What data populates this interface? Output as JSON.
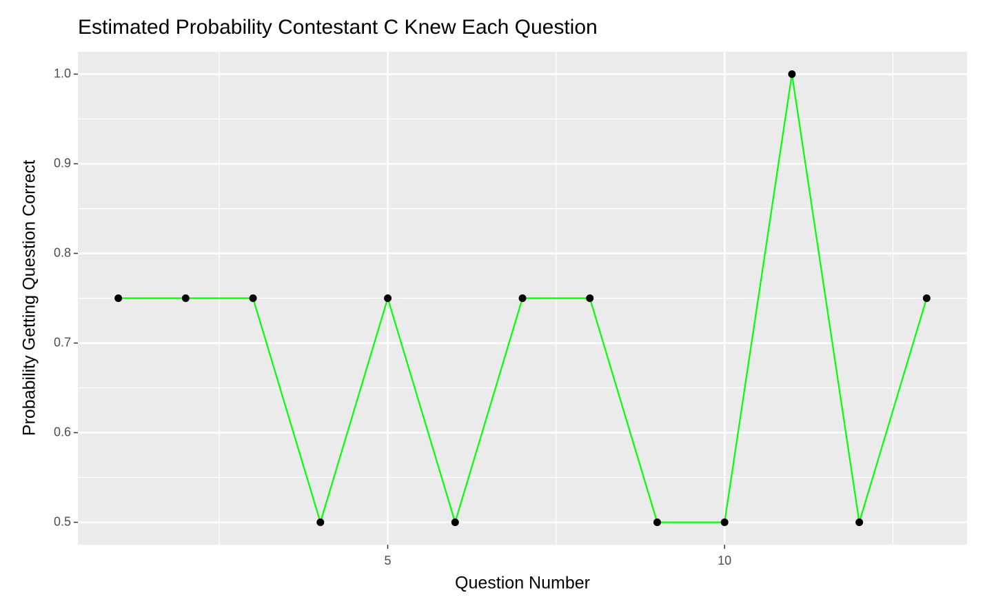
{
  "chart_data": {
    "type": "line",
    "title": "Estimated Probability Contestant C Knew Each Question",
    "x_label": "Question Number",
    "y_label": "Probability Getting Question Correct",
    "x": [
      1,
      2,
      3,
      4,
      5,
      6,
      7,
      8,
      9,
      10,
      11,
      12,
      13
    ],
    "series": [
      {
        "values": [
          0.75,
          0.75,
          0.75,
          0.5,
          0.75,
          0.5,
          0.75,
          0.75,
          0.5,
          0.5,
          1.0,
          0.5,
          0.75
        ],
        "color": "#00ff00",
        "point_color": "#000000"
      }
    ],
    "xlim": [
      0.4,
      13.6
    ],
    "ylim": [
      0.475,
      1.025
    ],
    "xticks": [
      5,
      10
    ],
    "yticks": [
      {
        "value": 0.5,
        "label": "0.5"
      },
      {
        "value": 0.6,
        "label": "0.6"
      },
      {
        "value": 0.7,
        "label": "0.7"
      },
      {
        "value": 0.8,
        "label": "0.8"
      },
      {
        "value": 0.9,
        "label": "0.9"
      },
      {
        "value": 1.0,
        "label": "1.0"
      }
    ],
    "grid": true
  }
}
